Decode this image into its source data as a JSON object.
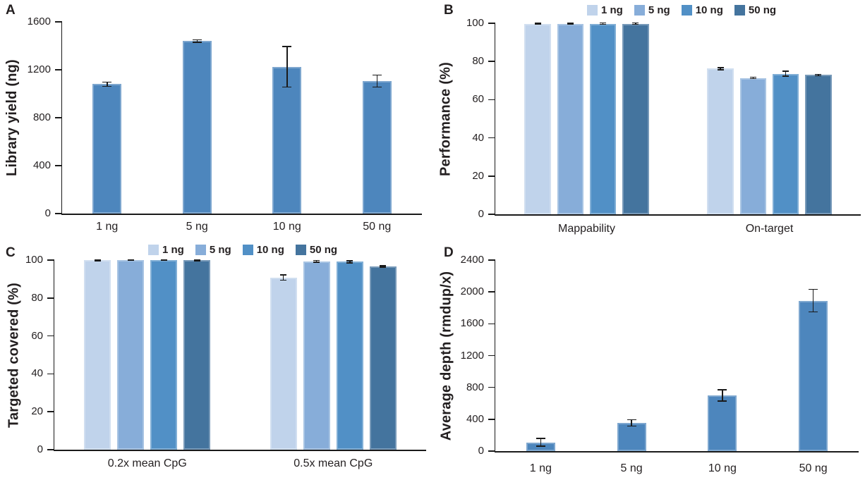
{
  "figure": {
    "background": "#ffffff",
    "text_color": "#231f20",
    "axis_color": "#1a1a1a",
    "single_bar_color": "#4d86bd",
    "series_colors": [
      "#c0d3eb",
      "#87add9",
      "#5190c6",
      "#44749e"
    ],
    "series_labels": [
      "1 ng",
      "5 ng",
      "10 ng",
      "50 ng"
    ]
  },
  "chart_data": [
    {
      "id": "A",
      "panel_label": "A",
      "type": "bar",
      "title": "",
      "xlabel": "",
      "ylabel": "Library yield (ng)",
      "categories": [
        "1 ng",
        "5 ng",
        "10 ng",
        "50 ng"
      ],
      "values": [
        1080,
        1440,
        1225,
        1105
      ],
      "errors": [
        18,
        10,
        170,
        50
      ],
      "ylim": [
        0,
        1600
      ],
      "ytick_step": 400,
      "grid": false,
      "legend": false
    },
    {
      "id": "B",
      "panel_label": "B",
      "type": "bar",
      "title": "",
      "xlabel": "",
      "ylabel": "Performance (%)",
      "categories": [
        "Mappability",
        "On-target"
      ],
      "series": [
        {
          "name": "1 ng",
          "values": [
            99.7,
            76.2
          ],
          "errors": [
            0.3,
            0.5
          ]
        },
        {
          "name": "5 ng",
          "values": [
            99.7,
            71.4
          ],
          "errors": [
            0.3,
            0.4
          ]
        },
        {
          "name": "10 ng",
          "values": [
            99.8,
            73.6
          ],
          "errors": [
            0.3,
            1.3
          ]
        },
        {
          "name": "50 ng",
          "values": [
            99.8,
            72.9
          ],
          "errors": [
            0.3,
            0.4
          ]
        }
      ],
      "ylim": [
        0,
        100
      ],
      "ytick_step": 20,
      "grid": false,
      "legend": true,
      "legend_position": "top"
    },
    {
      "id": "C",
      "panel_label": "C",
      "type": "bar",
      "title": "",
      "xlabel": "",
      "ylabel": "Targeted covered (%)",
      "categories": [
        "0.2x mean CpG",
        "0.5x mean CpG"
      ],
      "series": [
        {
          "name": "1 ng",
          "values": [
            99.9,
            90.8
          ],
          "errors": [
            0.3,
            1.4
          ]
        },
        {
          "name": "5 ng",
          "values": [
            100,
            99.3
          ],
          "errors": [
            0.2,
            0.5
          ]
        },
        {
          "name": "10 ng",
          "values": [
            100,
            99.1
          ],
          "errors": [
            0.2,
            0.5
          ]
        },
        {
          "name": "50 ng",
          "values": [
            99.9,
            96.6
          ],
          "errors": [
            0.3,
            0.4
          ]
        }
      ],
      "ylim": [
        0,
        100
      ],
      "ytick_step": 20,
      "grid": false,
      "legend": true,
      "legend_position": "top"
    },
    {
      "id": "D",
      "panel_label": "D",
      "type": "bar",
      "title": "",
      "xlabel": "",
      "ylabel": "Average depth (rmdup/x)",
      "categories": [
        "1 ng",
        "5 ng",
        "10 ng",
        "50 ng"
      ],
      "values": [
        110,
        355,
        700,
        1890
      ],
      "errors": [
        48,
        40,
        72,
        142
      ],
      "ylim": [
        0,
        2400
      ],
      "ytick_step": 400,
      "grid": false,
      "legend": false
    }
  ]
}
